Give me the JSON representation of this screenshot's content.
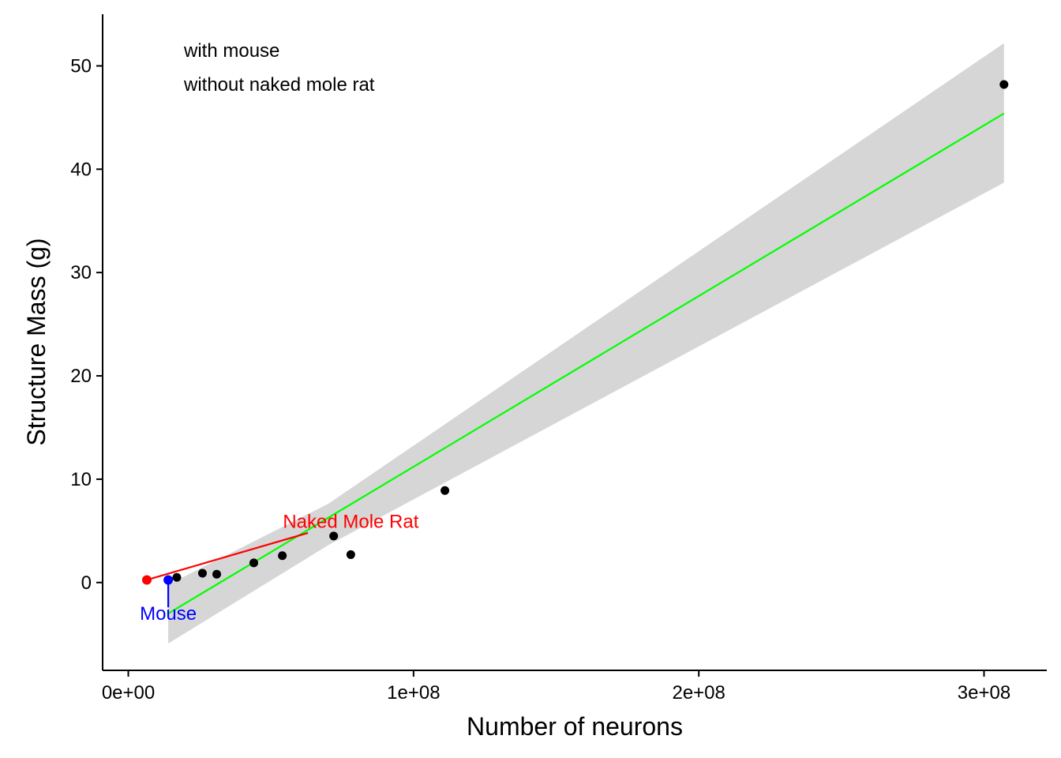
{
  "chart_data": {
    "type": "scatter",
    "title": "",
    "xlabel": "Number of neurons",
    "ylabel": "Structure Mass (g)",
    "xlim": [
      -9000000,
      322000000
    ],
    "ylim": [
      -8.5,
      55
    ],
    "grid": false,
    "x_ticks": [
      {
        "value": 0,
        "label": "0e+00"
      },
      {
        "value": 100000000,
        "label": "1e+08"
      },
      {
        "value": 200000000,
        "label": "2e+08"
      },
      {
        "value": 300000000,
        "label": "3e+08"
      }
    ],
    "y_ticks": [
      {
        "value": 0,
        "label": "0"
      },
      {
        "value": 10,
        "label": "10"
      },
      {
        "value": 20,
        "label": "20"
      },
      {
        "value": 30,
        "label": "30"
      },
      {
        "value": 40,
        "label": "40"
      },
      {
        "value": 50,
        "label": "50"
      }
    ],
    "annotations": [
      "with mouse",
      "without naked mole rat"
    ],
    "points": [
      {
        "x": 17000000,
        "y": 0.5
      },
      {
        "x": 26000000,
        "y": 0.9
      },
      {
        "x": 31000000,
        "y": 0.8
      },
      {
        "x": 44000000,
        "y": 1.9
      },
      {
        "x": 54000000,
        "y": 2.6
      },
      {
        "x": 72000000,
        "y": 4.5
      },
      {
        "x": 78000000,
        "y": 2.7
      },
      {
        "x": 111000000,
        "y": 8.9
      },
      {
        "x": 307000000,
        "y": 48.2
      }
    ],
    "highlighted": [
      {
        "name": "Naked Mole Rat",
        "x": 6500000,
        "y": 0.25,
        "color": "#ff0000",
        "label_x": 78000000,
        "label_y": 5.3,
        "anchor_x": 63000000,
        "anchor_y": 4.8
      },
      {
        "name": "Mouse",
        "x": 14000000,
        "y": 0.25,
        "color": "#0000ff",
        "label_x": 14000000,
        "label_y": -3.6,
        "anchor_x": 14000000,
        "anchor_y": -2.4
      }
    ],
    "fit_line": {
      "color": "#00ff00",
      "x_start": 14000000,
      "x_end": 307000000,
      "y_start": -3.0,
      "y_end": 45.4
    },
    "confidence_band": {
      "color": "#d6d6d6",
      "x": [
        14000000,
        70000000,
        307000000
      ],
      "lower": [
        -5.9,
        3.6,
        38.7
      ],
      "upper": [
        -0.2,
        7.6,
        52.2
      ]
    },
    "point_color": "#000000"
  }
}
